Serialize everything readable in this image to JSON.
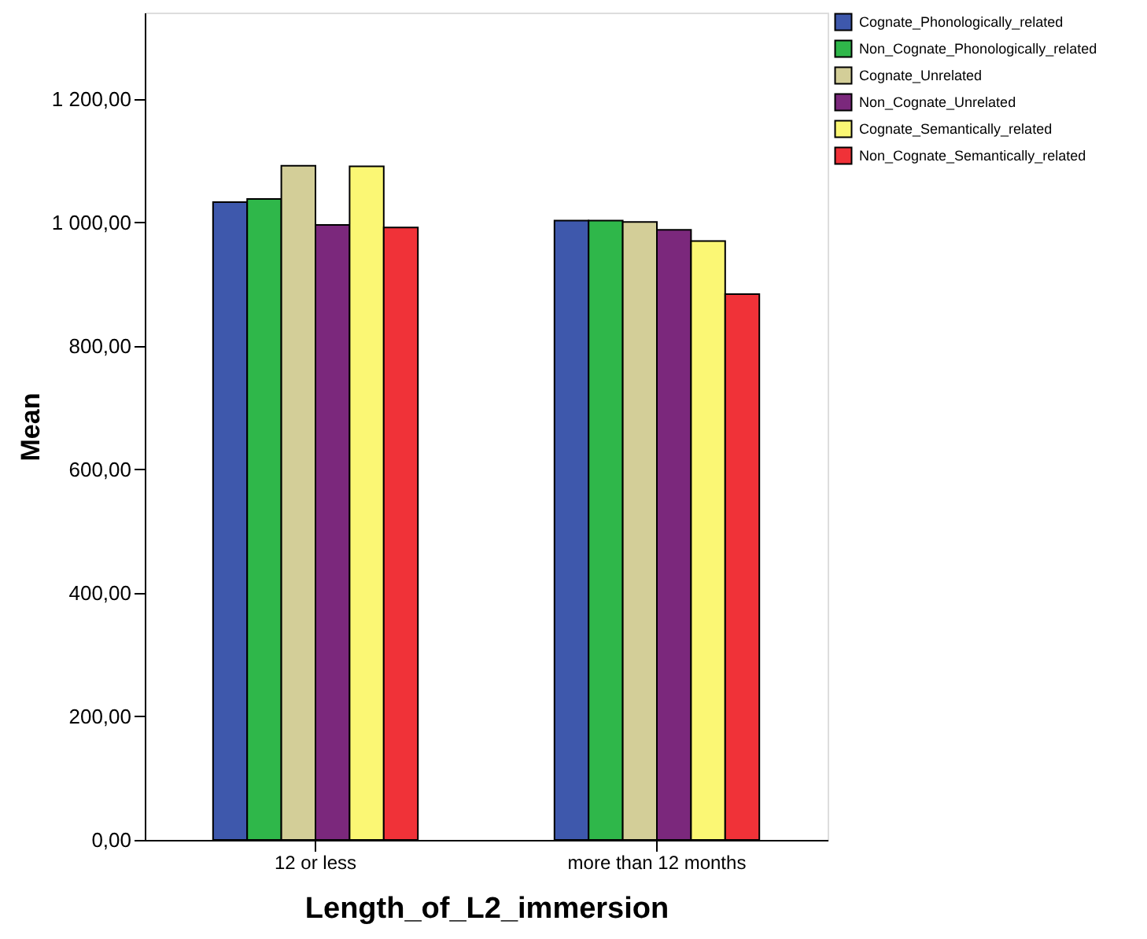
{
  "chart_data": {
    "type": "bar",
    "xlabel": "Length_of_L2_immersion",
    "ylabel": "Mean",
    "categories": [
      "12 or less",
      "more than 12 months"
    ],
    "series": [
      {
        "name": "Cognate_Phonologically_related",
        "color": "#3e58ac",
        "values": [
          1033,
          1003
        ]
      },
      {
        "name": "Non_Cognate_Phonologically_related",
        "color": "#2fb74a",
        "values": [
          1038,
          1003
        ]
      },
      {
        "name": "Cognate_Unrelated",
        "color": "#d3ce98",
        "values": [
          1092,
          1001
        ]
      },
      {
        "name": "Non_Cognate_Unrelated",
        "color": "#7b287c",
        "values": [
          996,
          988
        ]
      },
      {
        "name": "Cognate_Semantically_related",
        "color": "#fbf774",
        "values": [
          1091,
          970
        ]
      },
      {
        "name": "Non_Cognate_Semantically_related",
        "color": "#f03238",
        "values": [
          992,
          884
        ]
      }
    ],
    "ylim": [
      0,
      1340
    ],
    "yticks": [
      {
        "value": 0,
        "label": "0,00"
      },
      {
        "value": 200,
        "label": "200,00"
      },
      {
        "value": 400,
        "label": "400,00"
      },
      {
        "value": 600,
        "label": "600,00"
      },
      {
        "value": 800,
        "label": "800,00"
      },
      {
        "value": 1000,
        "label": "1 000,00"
      },
      {
        "value": 1200,
        "label": "1 200,00"
      }
    ],
    "grid": false,
    "legend": "top right"
  }
}
